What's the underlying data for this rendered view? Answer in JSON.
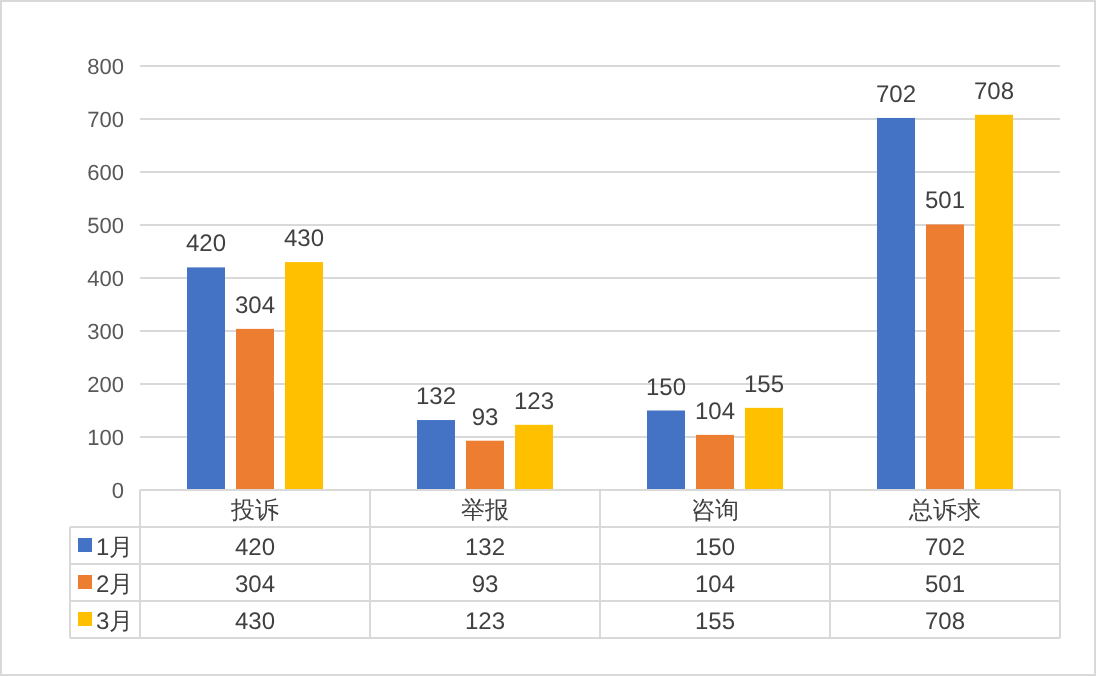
{
  "chart_data": {
    "type": "bar",
    "categories": [
      "投诉",
      "举报",
      "咨询",
      "总诉求"
    ],
    "series": [
      {
        "name": "1月",
        "color": "#4472c4",
        "values": [
          420,
          132,
          150,
          702
        ],
        "value_labels": [
          "420",
          "132",
          "150",
          "702"
        ]
      },
      {
        "name": "2月",
        "color": "#ed7d31",
        "values": [
          304,
          93,
          104,
          501
        ],
        "value_labels": [
          "304",
          "93",
          "104",
          "501"
        ]
      },
      {
        "name": "3月",
        "color": "#ffc000",
        "values": [
          430,
          123,
          155,
          708
        ],
        "value_labels": [
          "430",
          "123",
          "155",
          "708"
        ]
      }
    ],
    "ylim": [
      0,
      800
    ],
    "yticks": [
      0,
      100,
      200,
      300,
      400,
      500,
      600,
      700,
      800
    ],
    "grid": "y",
    "data_labels": true,
    "legend": "bottom",
    "annotations": [
      "420",
      "132",
      "150",
      "702",
      "304",
      "93",
      "104",
      "501",
      "430",
      "123",
      "155",
      "708"
    ]
  }
}
